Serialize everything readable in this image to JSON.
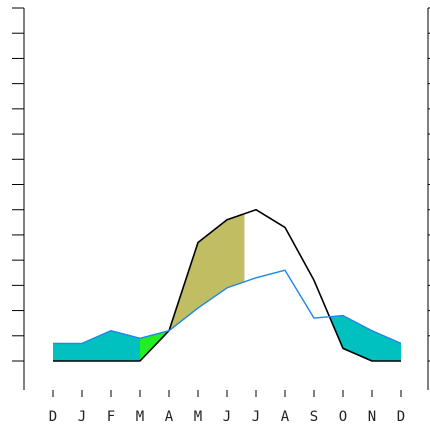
{
  "chart_data": {
    "type": "line",
    "title": "",
    "xlabel": "",
    "ylabel": "",
    "categories": [
      "D",
      "J",
      "F",
      "M",
      "A",
      "M",
      "J",
      "J",
      "A",
      "S",
      "O",
      "N",
      "D"
    ],
    "ylim": [
      0,
      14
    ],
    "y_tick_count": 15,
    "y_ticks_labeled": false,
    "grid": false,
    "series": [
      {
        "values": [
          0,
          0,
          0,
          0,
          1.2,
          4.7,
          5.6,
          6.0,
          5.3,
          3.2,
          0.5,
          0,
          0
        ],
        "color": "#000000"
      },
      {
        "values": [
          0.7,
          0.7,
          1.2,
          0.9,
          1.2,
          2.1,
          2.9,
          3.3,
          3.6,
          1.7,
          1.8,
          1.2,
          0.7
        ],
        "color": "#1e88e5"
      }
    ],
    "fills": [
      {
        "between": "series",
        "from_index": 0,
        "to_index": 3,
        "color": "#00c0c0"
      },
      {
        "between": "series",
        "from_index": 3,
        "to_index": 4,
        "color": "#22ee22"
      },
      {
        "between": "series",
        "from_index": 4,
        "to_index": 6.6,
        "color": "#c0bd63"
      },
      {
        "between": "series",
        "from_index": 9.5,
        "to_index": 12,
        "color": "#00c0c0"
      }
    ]
  }
}
